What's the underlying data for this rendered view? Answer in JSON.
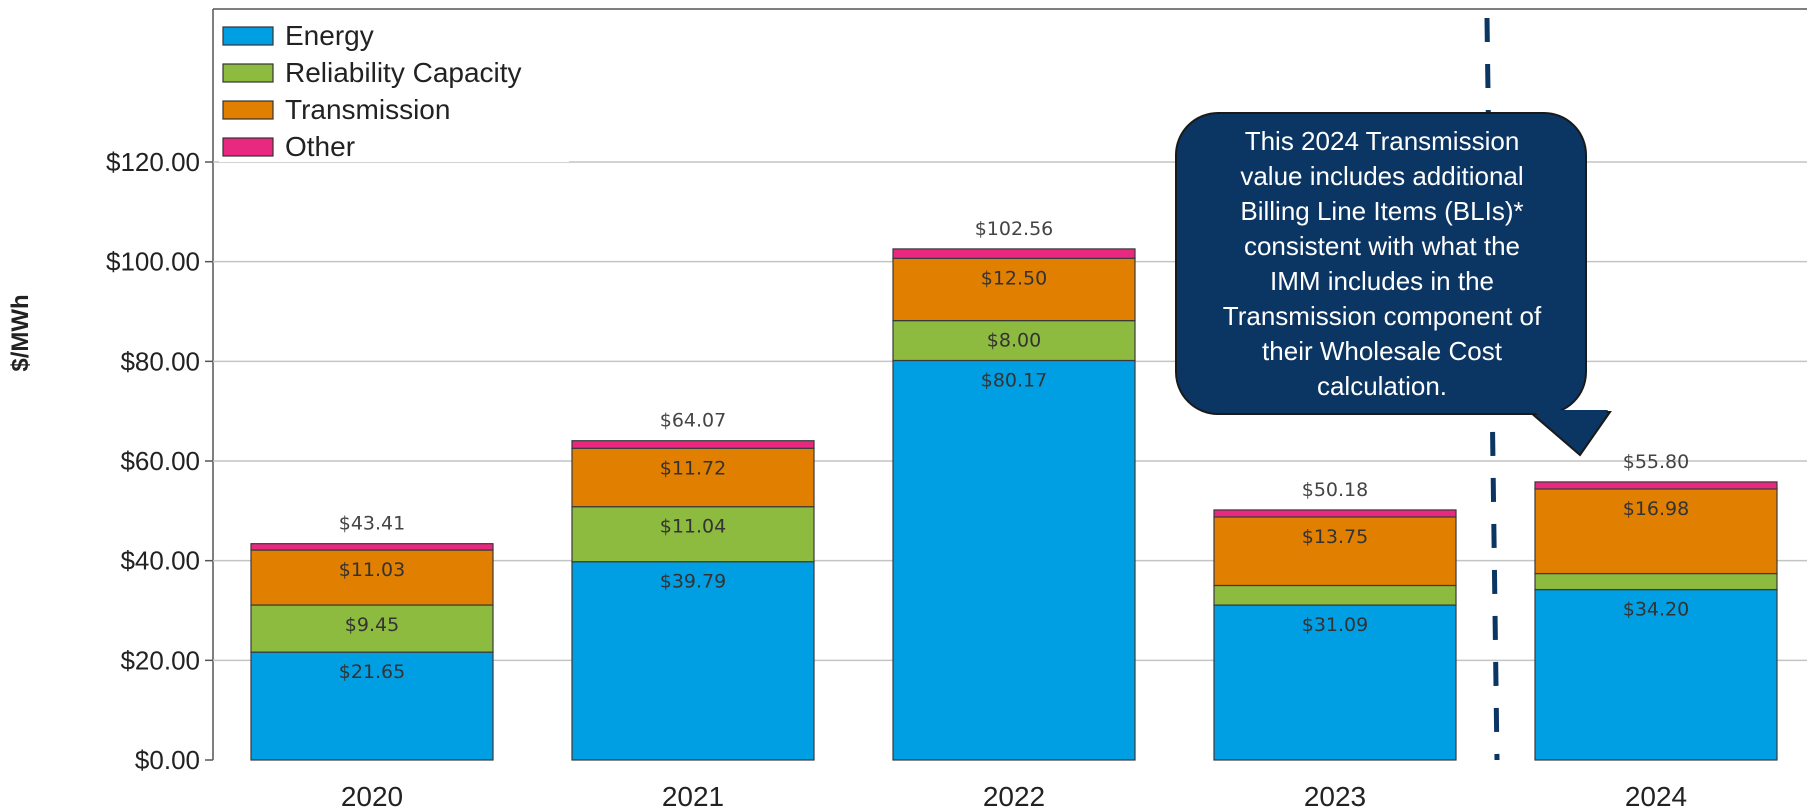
{
  "chart_data": {
    "type": "bar",
    "stacked": true,
    "categories": [
      "2020",
      "2021",
      "2022",
      "2023",
      "2024"
    ],
    "ylabel": "$/MWh",
    "ylim": [
      0,
      125
    ],
    "yticks": [
      "$0.00",
      "$20.00",
      "$40.00",
      "$60.00",
      "$80.00",
      "$100.00",
      "$120.00"
    ],
    "ytick_values": [
      0,
      20,
      40,
      60,
      80,
      100,
      120
    ],
    "grid": true,
    "legend_position": "top-left",
    "series": [
      {
        "name": "Energy",
        "color": "#009fe3",
        "values": [
          21.65,
          39.79,
          80.17,
          31.09,
          34.2
        ],
        "labels": [
          "$21.65",
          "$39.79",
          "$80.17",
          "$31.09",
          "$34.20"
        ]
      },
      {
        "name": "Reliability Capacity",
        "color": "#8dbb40",
        "values": [
          9.45,
          11.04,
          8.0,
          3.93,
          3.21
        ],
        "labels": [
          "$9.45",
          "$11.04",
          "$8.00",
          "",
          ""
        ]
      },
      {
        "name": "Transmission",
        "color": "#e07f00",
        "values": [
          11.03,
          11.72,
          12.5,
          13.75,
          16.98
        ],
        "labels": [
          "$11.03",
          "$11.72",
          "$12.50",
          "$13.75",
          "$16.98"
        ]
      },
      {
        "name": "Other",
        "color": "#e8297f",
        "values": [
          1.28,
          1.52,
          1.89,
          1.41,
          1.41
        ],
        "labels": [
          "",
          "",
          "",
          "",
          ""
        ]
      }
    ],
    "totals": [
      "$43.41",
      "$64.07",
      "$102.56",
      "$50.18",
      "$55.80"
    ],
    "callout": {
      "lines": [
        "This 2024 Transmission",
        "value includes additional",
        "Billing Line Items (BLIs)*",
        "consistent with what the",
        "IMM includes in the",
        "Transmission component of",
        "their Wholesale Cost",
        "calculation."
      ],
      "fill": "#0b3563",
      "divider_color": "#0b3563"
    }
  }
}
